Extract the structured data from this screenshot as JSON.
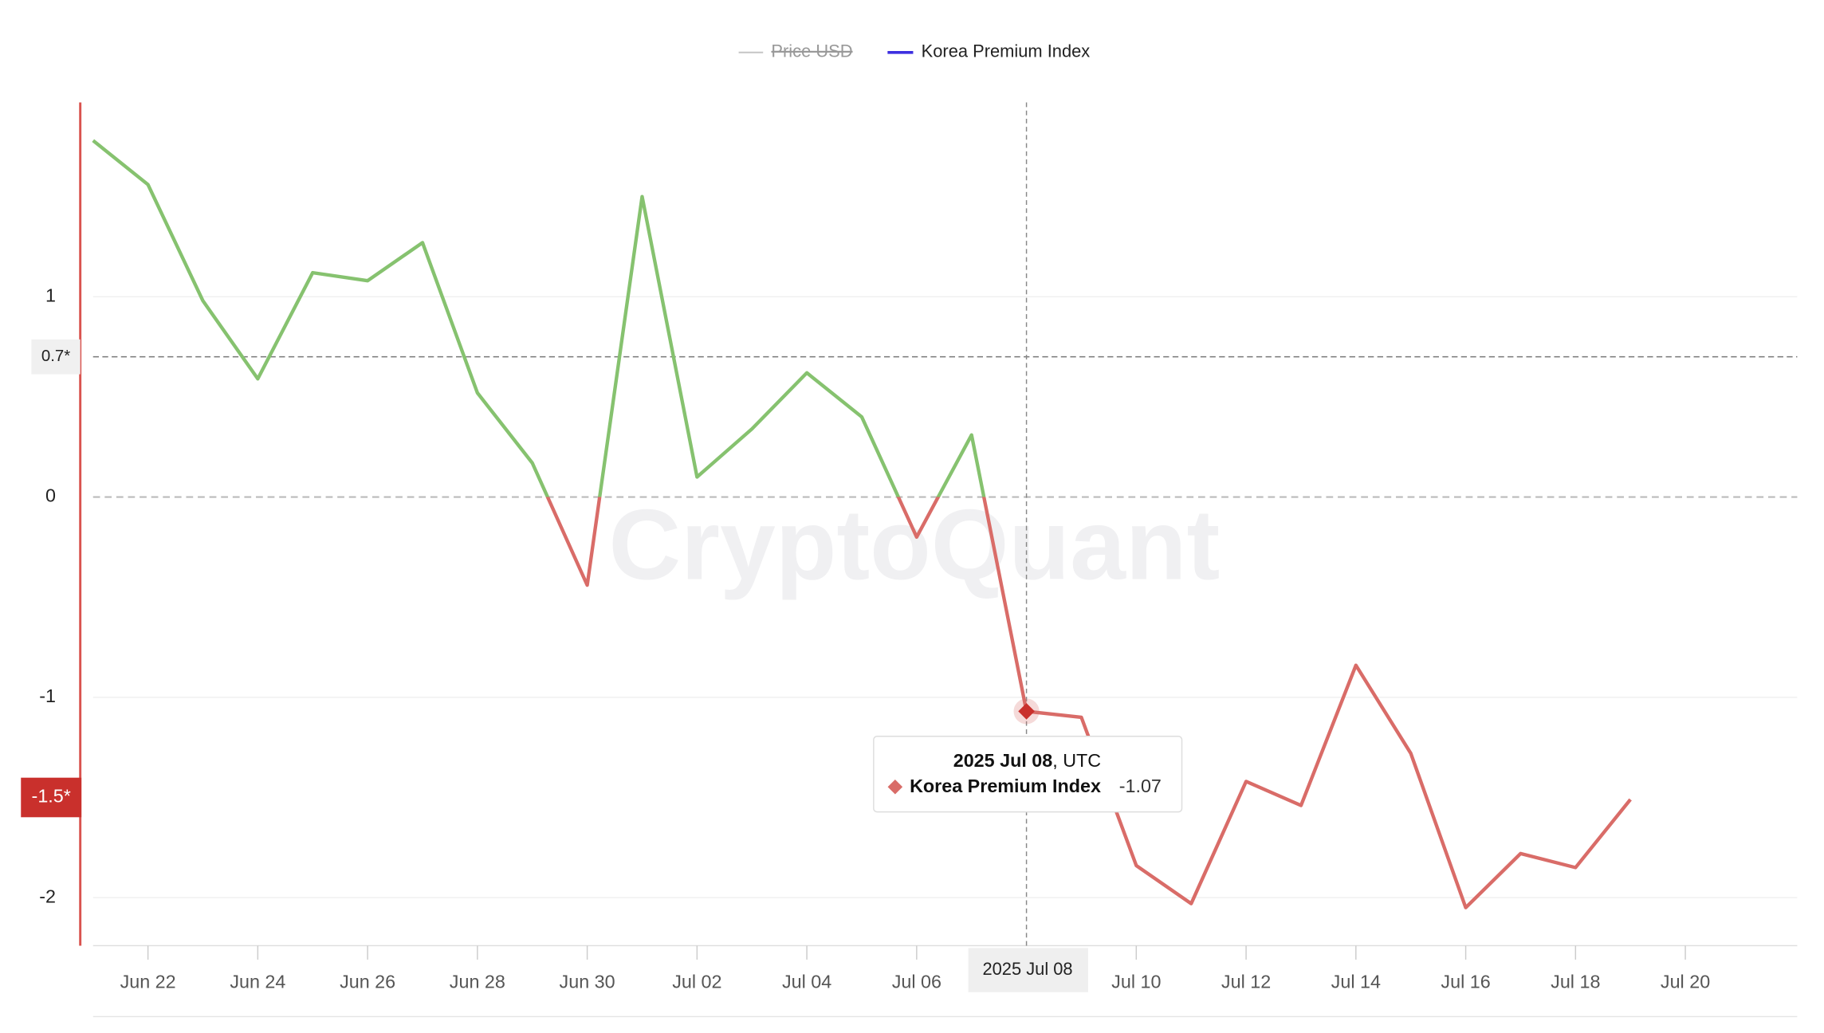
{
  "chart_data": {
    "type": "line",
    "legend": [
      {
        "name": "Price USD",
        "color": "#c8c8c8",
        "hidden": true
      }
    ],
    "categories": [
      null,
      "Jun 22",
      null,
      "Jun 24",
      null,
      "Jun 26",
      null,
      "Jun 28",
      null,
      "Jun 30",
      null,
      "Jul 02",
      null,
      "Jul 04",
      null,
      "Jul 06",
      null,
      "2025 Jul 08",
      null,
      "Jul 10",
      null,
      "Jul 12",
      null,
      "Jul 14",
      null,
      "Jul 16",
      null,
      "Jul 18",
      null,
      "Jul 20"
    ],
    "series": [
      {
        "name": "Korea Premium Index",
        "color": "#3d2fe0",
        "positive_color": "#86c26f",
        "negative_color": "#d96c68",
        "values": [
          1.78,
          1.56,
          0.98,
          0.59,
          1.12,
          1.08,
          1.27,
          0.52,
          0.17,
          -0.44,
          1.5,
          0.1,
          0.34,
          0.62,
          0.4,
          -0.2,
          0.31,
          -1.07,
          -1.1,
          -1.84,
          -2.03,
          -1.42,
          -1.54,
          -0.84,
          -1.28,
          -2.05,
          -1.78,
          -1.85,
          -1.51,
          null
        ]
      }
    ],
    "ylim": [
      -2.24,
      1.97
    ],
    "yticks": [
      -2,
      -1,
      0,
      1
    ],
    "grid": true,
    "reference_lines": [
      {
        "value": 0.7,
        "label": "0.7*",
        "style": "dashed"
      },
      {
        "value": -1.5,
        "label": "-1.5*",
        "style": "badge"
      }
    ],
    "tooltip": {
      "index": 17,
      "date": "2025 Jul 08",
      "suffix": ", UTC"
    },
    "watermark": "CryptoQuant"
  }
}
